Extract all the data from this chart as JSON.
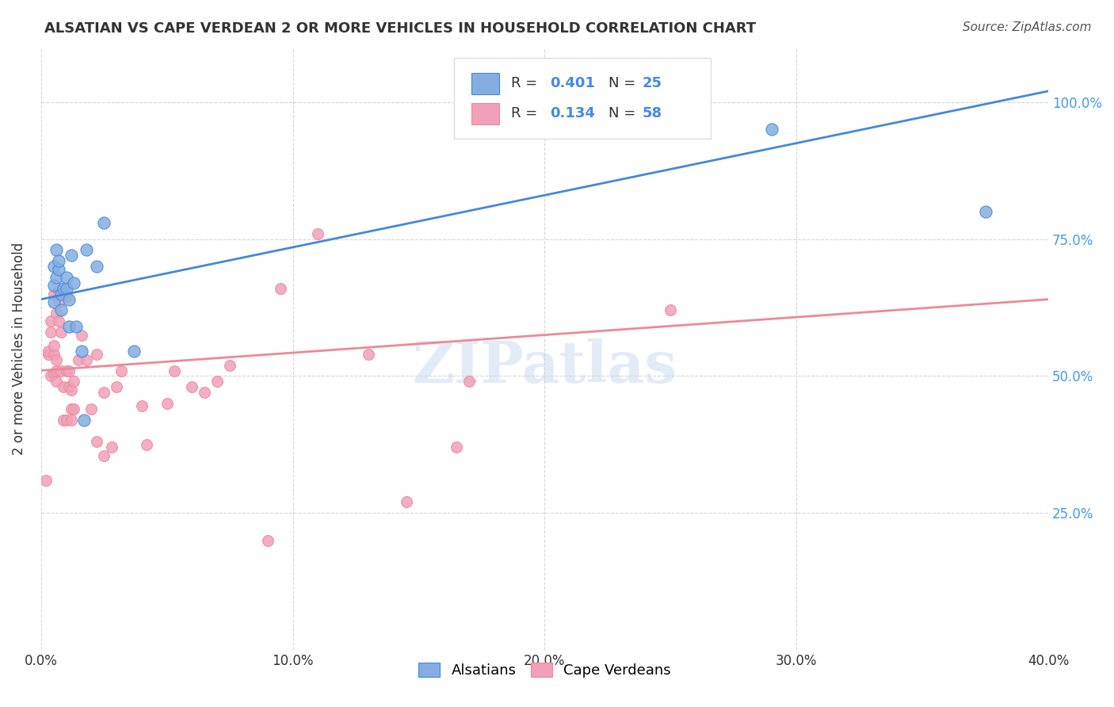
{
  "title": "ALSATIAN VS CAPE VERDEAN 2 OR MORE VEHICLES IN HOUSEHOLD CORRELATION CHART",
  "source": "Source: ZipAtlas.com",
  "ylabel": "2 or more Vehicles in Household",
  "xlim": [
    0.0,
    0.4
  ],
  "ylim": [
    0.0,
    1.1
  ],
  "xtick_labels": [
    "0.0%",
    "10.0%",
    "20.0%",
    "30.0%",
    "40.0%"
  ],
  "xtick_vals": [
    0.0,
    0.1,
    0.2,
    0.3,
    0.4
  ],
  "ytick_vals": [
    0.0,
    0.25,
    0.5,
    0.75,
    1.0
  ],
  "ytick_labels_right": [
    "25.0%",
    "50.0%",
    "75.0%",
    "100.0%"
  ],
  "ytick_vals_right": [
    0.25,
    0.5,
    0.75,
    1.0
  ],
  "watermark": "ZIPatlas",
  "color_alsatian": "#85aee0",
  "color_cape": "#f0a0b8",
  "color_line_alsatian": "#4488dd",
  "color_line_cape": "#ee8899",
  "color_title": "#333333",
  "color_source": "#555555",
  "color_r_value": "#4488ee",
  "color_right_axis": "#4499ee",
  "alsatian_x": [
    0.005,
    0.005,
    0.005,
    0.006,
    0.006,
    0.007,
    0.007,
    0.008,
    0.008,
    0.009,
    0.01,
    0.01,
    0.011,
    0.011,
    0.012,
    0.013,
    0.014,
    0.016,
    0.017,
    0.018,
    0.022,
    0.025,
    0.037,
    0.29,
    0.375
  ],
  "alsatian_y": [
    0.635,
    0.665,
    0.7,
    0.68,
    0.73,
    0.695,
    0.71,
    0.62,
    0.65,
    0.66,
    0.66,
    0.68,
    0.59,
    0.64,
    0.72,
    0.67,
    0.59,
    0.545,
    0.42,
    0.73,
    0.7,
    0.78,
    0.545,
    0.95,
    0.8
  ],
  "cape_x": [
    0.002,
    0.003,
    0.003,
    0.004,
    0.004,
    0.004,
    0.005,
    0.005,
    0.005,
    0.005,
    0.006,
    0.006,
    0.006,
    0.006,
    0.007,
    0.007,
    0.007,
    0.008,
    0.008,
    0.009,
    0.009,
    0.01,
    0.01,
    0.01,
    0.011,
    0.011,
    0.012,
    0.012,
    0.012,
    0.013,
    0.013,
    0.015,
    0.016,
    0.018,
    0.02,
    0.022,
    0.022,
    0.025,
    0.025,
    0.028,
    0.03,
    0.032,
    0.04,
    0.042,
    0.05,
    0.053,
    0.06,
    0.065,
    0.07,
    0.075,
    0.09,
    0.095,
    0.11,
    0.13,
    0.145,
    0.165,
    0.17,
    0.25
  ],
  "cape_y": [
    0.31,
    0.54,
    0.545,
    0.58,
    0.6,
    0.5,
    0.505,
    0.54,
    0.555,
    0.65,
    0.49,
    0.51,
    0.53,
    0.615,
    0.6,
    0.635,
    0.655,
    0.51,
    0.58,
    0.42,
    0.48,
    0.42,
    0.51,
    0.645,
    0.48,
    0.51,
    0.42,
    0.44,
    0.475,
    0.44,
    0.49,
    0.53,
    0.575,
    0.53,
    0.44,
    0.38,
    0.54,
    0.355,
    0.47,
    0.37,
    0.48,
    0.51,
    0.445,
    0.375,
    0.45,
    0.51,
    0.48,
    0.47,
    0.49,
    0.52,
    0.2,
    0.66,
    0.76,
    0.54,
    0.27,
    0.37,
    0.49,
    0.62
  ],
  "alsatian_trendline_x": [
    0.0,
    0.4
  ],
  "alsatian_trendline_y": [
    0.64,
    1.02
  ],
  "cape_trendline_x": [
    0.0,
    0.4
  ],
  "cape_trendline_y": [
    0.51,
    0.64
  ],
  "figsize": [
    14.06,
    8.92
  ],
  "dpi": 100
}
